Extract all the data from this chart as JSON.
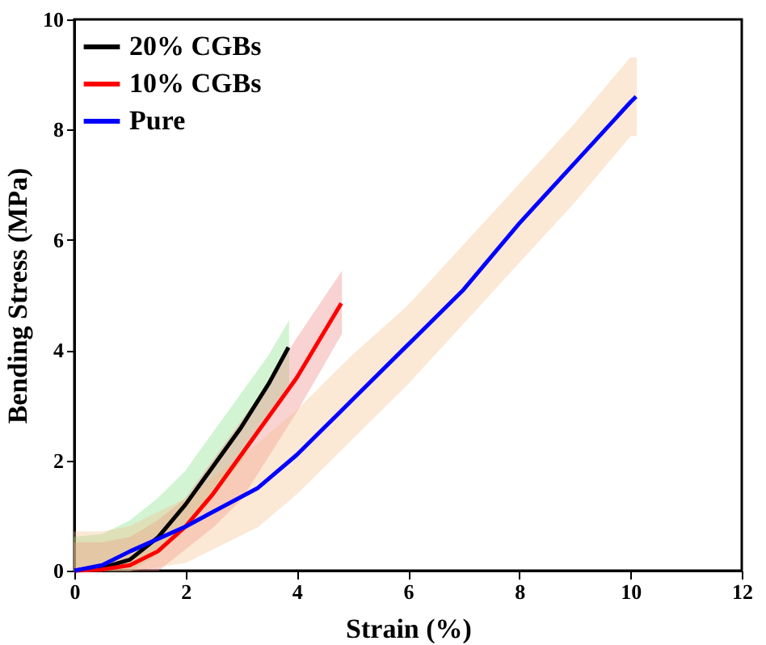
{
  "chart_data": {
    "type": "line",
    "xlabel": "Strain (%)",
    "ylabel": "Bending Stress (MPa)",
    "xlim": [
      0,
      12
    ],
    "xticks": [
      0,
      2,
      4,
      6,
      8,
      10,
      12
    ],
    "ylim": [
      0,
      10
    ],
    "yticks": [
      0,
      2,
      4,
      6,
      8,
      10
    ],
    "grid": false,
    "legend": "top left",
    "marker": "none",
    "line_style": "solid",
    "series": [
      {
        "name": "20% CGBs",
        "color": "#000000",
        "x": [
          0,
          0.5,
          1,
          1.5,
          2,
          2.5,
          3,
          3.5,
          3.85
        ],
        "values": [
          0,
          0.05,
          0.2,
          0.6,
          1.2,
          1.9,
          2.6,
          3.4,
          4.05
        ],
        "upper": [
          0.6,
          0.65,
          0.9,
          1.3,
          1.8,
          2.5,
          3.2,
          3.9,
          4.5
        ],
        "lower": [
          0,
          0,
          0,
          0.3,
          0.8,
          1.4,
          2.0,
          2.8,
          3.4
        ]
      },
      {
        "name": "10% CGBs",
        "color": "#ff0000",
        "x": [
          0,
          0.5,
          1,
          1.5,
          2,
          2.5,
          3,
          3.5,
          4,
          4.8
        ],
        "values": [
          0,
          0.02,
          0.1,
          0.35,
          0.8,
          1.4,
          2.1,
          2.8,
          3.5,
          4.85
        ],
        "upper": [
          0.5,
          0.5,
          0.6,
          0.9,
          1.3,
          2.0,
          2.7,
          3.4,
          4.2,
          5.4
        ],
        "lower": [
          0,
          0,
          0,
          0,
          0.4,
          0.8,
          1.3,
          2.1,
          2.9,
          4.3
        ]
      },
      {
        "name": "Pure",
        "color": "#0000ff",
        "x": [
          0,
          0.5,
          1,
          2,
          3.3,
          4,
          5,
          6,
          7,
          8,
          9,
          10,
          10.1
        ],
        "values": [
          0,
          0.1,
          0.35,
          0.8,
          1.5,
          2.1,
          3.1,
          4.1,
          5.1,
          6.3,
          7.4,
          8.5,
          8.6
        ],
        "upper": [
          0.7,
          0.7,
          0.8,
          1.3,
          2.3,
          2.9,
          3.9,
          4.8,
          5.9,
          7.0,
          8.1,
          9.3,
          9.3
        ],
        "lower": [
          0,
          0,
          0,
          0.15,
          0.8,
          1.4,
          2.4,
          3.4,
          4.5,
          5.6,
          6.7,
          7.9,
          7.9
        ]
      }
    ]
  }
}
